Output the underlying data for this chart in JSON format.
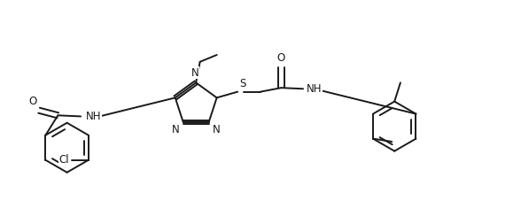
{
  "bg_color": "#ffffff",
  "line_color": "#1a1a1a",
  "line_width": 1.4,
  "font_size": 8.5,
  "figsize": [
    5.88,
    2.27
  ],
  "dpi": 100,
  "xlim": [
    0,
    10.5
  ],
  "ylim": [
    0,
    3.8
  ]
}
